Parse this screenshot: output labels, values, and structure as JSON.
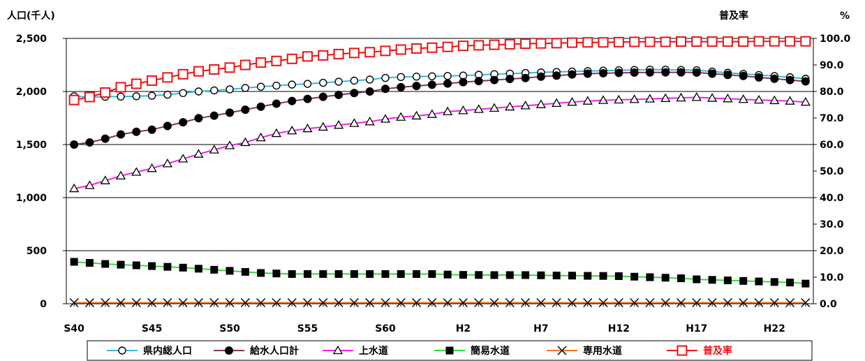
{
  "chart_data": {
    "type": "line",
    "y_left_label": "人口(千人)",
    "y_right_label": "普及率",
    "y_right_unit": "%",
    "y_left_range": [
      0,
      2500
    ],
    "y_right_range": [
      0,
      100
    ],
    "y_left_ticks": [
      "0",
      "500",
      "1,000",
      "1,500",
      "2,000",
      "2,500"
    ],
    "y_right_ticks": [
      "0.0",
      "10.0",
      "20.0",
      "30.0",
      "40.0",
      "50.0",
      "60.0",
      "70.0",
      "80.0",
      "90.0",
      "100.0"
    ],
    "x_tick_labels": [
      "S40",
      "S45",
      "S50",
      "S55",
      "S60",
      "H2",
      "H7",
      "H12",
      "H17",
      "H22"
    ],
    "x": [
      "S40",
      "S41",
      "S42",
      "S43",
      "S44",
      "S45",
      "S46",
      "S47",
      "S48",
      "S49",
      "S50",
      "S51",
      "S52",
      "S53",
      "S54",
      "S55",
      "S56",
      "S57",
      "S58",
      "S59",
      "S60",
      "S61",
      "S62",
      "S63",
      "H1",
      "H2",
      "H3",
      "H4",
      "H5",
      "H6",
      "H7",
      "H8",
      "H9",
      "H10",
      "H11",
      "H12",
      "H13",
      "H14",
      "H15",
      "H16",
      "H17",
      "H18",
      "H19",
      "H20",
      "H21",
      "H22",
      "H23",
      "H24"
    ],
    "grid": "horizontal major lines at 500-unit intervals",
    "legend_position": "bottom",
    "series": [
      {
        "name": "県内総人口",
        "axis": "left",
        "color": "#33bbdd",
        "marker": "circle-open",
        "values": [
          1955,
          1948,
          1950,
          1952,
          1955,
          1960,
          1970,
          1985,
          2000,
          2010,
          2020,
          2033,
          2045,
          2055,
          2065,
          2072,
          2082,
          2092,
          2102,
          2112,
          2128,
          2136,
          2140,
          2143,
          2146,
          2150,
          2157,
          2163,
          2168,
          2174,
          2180,
          2184,
          2188,
          2192,
          2196,
          2200,
          2203,
          2205,
          2205,
          2203,
          2200,
          2188,
          2176,
          2166,
          2155,
          2145,
          2134,
          2120
        ]
      },
      {
        "name": "給水人口計",
        "axis": "left",
        "color": "#883355",
        "marker": "circle-filled",
        "values": [
          1500,
          1520,
          1555,
          1595,
          1620,
          1640,
          1675,
          1710,
          1748,
          1772,
          1800,
          1828,
          1857,
          1885,
          1910,
          1930,
          1950,
          1968,
          1985,
          2000,
          2025,
          2040,
          2052,
          2063,
          2075,
          2088,
          2098,
          2108,
          2118,
          2127,
          2140,
          2150,
          2160,
          2168,
          2172,
          2175,
          2178,
          2179,
          2180,
          2180,
          2178,
          2168,
          2156,
          2146,
          2132,
          2120,
          2108,
          2095
        ]
      },
      {
        "name": "上水道",
        "axis": "left",
        "color": "#ee22ee",
        "marker": "triangle-open",
        "values": [
          1085,
          1115,
          1160,
          1205,
          1240,
          1275,
          1320,
          1365,
          1410,
          1450,
          1490,
          1520,
          1565,
          1605,
          1630,
          1650,
          1665,
          1683,
          1700,
          1715,
          1740,
          1758,
          1770,
          1785,
          1810,
          1820,
          1832,
          1843,
          1855,
          1866,
          1877,
          1889,
          1900,
          1910,
          1917,
          1921,
          1925,
          1930,
          1935,
          1940,
          1945,
          1937,
          1932,
          1926,
          1920,
          1915,
          1910,
          1900
        ]
      },
      {
        "name": "簡易水道",
        "axis": "left",
        "color": "#33dd33",
        "marker": "square-filled",
        "values": [
          395,
          385,
          375,
          368,
          362,
          355,
          348,
          340,
          330,
          320,
          310,
          300,
          290,
          285,
          280,
          280,
          280,
          280,
          280,
          280,
          280,
          280,
          280,
          280,
          275,
          272,
          271,
          270,
          270,
          270,
          268,
          266,
          265,
          263,
          262,
          260,
          255,
          250,
          245,
          240,
          230,
          225,
          220,
          215,
          210,
          205,
          200,
          190
        ]
      },
      {
        "name": "専用水道",
        "axis": "left",
        "color": "#ee7722",
        "marker": "x",
        "values": [
          10,
          10,
          10,
          10,
          10,
          10,
          10,
          10,
          10,
          10,
          10,
          10,
          10,
          10,
          10,
          10,
          10,
          10,
          10,
          10,
          10,
          10,
          10,
          10,
          10,
          10,
          10,
          10,
          10,
          10,
          10,
          10,
          10,
          10,
          10,
          10,
          10,
          10,
          10,
          10,
          10,
          10,
          10,
          10,
          10,
          10,
          10,
          10
        ]
      },
      {
        "name": "普及率",
        "axis": "right",
        "color": "#ee1111",
        "marker": "square-open",
        "values": [
          76.8,
          77.9,
          79.6,
          81.6,
          82.9,
          84.1,
          85.3,
          86.5,
          87.6,
          88.3,
          89.0,
          90.0,
          90.9,
          91.5,
          92.3,
          93.2,
          93.6,
          94.1,
          94.5,
          94.8,
          95.3,
          95.8,
          96.2,
          96.5,
          96.8,
          97.2,
          97.4,
          97.6,
          97.8,
          98.0,
          98.1,
          98.2,
          98.4,
          98.5,
          98.5,
          98.6,
          98.7,
          98.7,
          98.7,
          98.8,
          98.8,
          98.8,
          98.8,
          98.8,
          98.9,
          98.9,
          98.9,
          98.9
        ]
      }
    ]
  }
}
